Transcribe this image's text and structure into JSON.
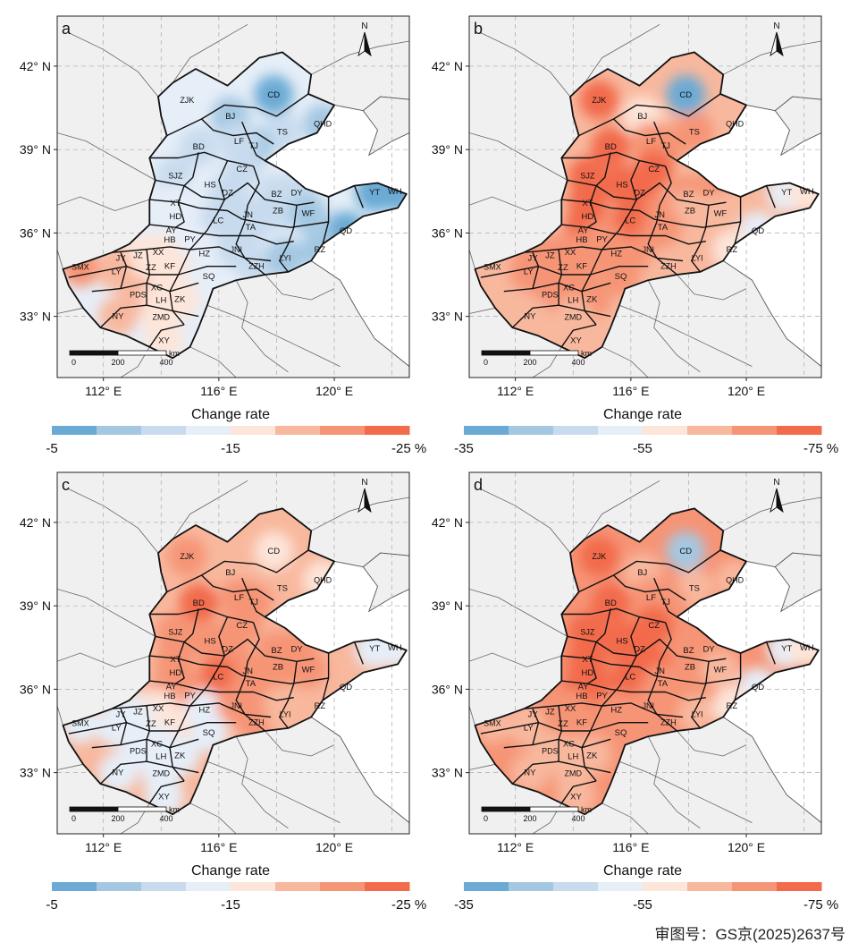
{
  "axes": {
    "lat_ticks": [
      "42° N",
      "39° N",
      "36° N",
      "33° N"
    ],
    "lon_ticks": [
      "112° E",
      "116° E",
      "120° E"
    ]
  },
  "north_label": "N",
  "scale_bar": {
    "ticks": [
      "0",
      "200",
      "400"
    ],
    "unit": "km"
  },
  "legend_title": "Change rate",
  "panels": [
    {
      "id": "a",
      "scale": "p15",
      "colorbar": {
        "left": "-5",
        "mid": "-15",
        "right": "-25 %"
      }
    },
    {
      "id": "b",
      "scale": "p55",
      "colorbar": {
        "left": "-35",
        "mid": "-55",
        "right": "-75 %"
      }
    },
    {
      "id": "c",
      "scale": "p15",
      "colorbar": {
        "left": "-5",
        "mid": "-15",
        "right": "-25 %"
      }
    },
    {
      "id": "d",
      "scale": "p55",
      "colorbar": {
        "left": "-35",
        "mid": "-55",
        "right": "-75 %"
      }
    }
  ],
  "colorbar_colors": [
    "#6aaad4",
    "#a4c8e2",
    "#c8dbee",
    "#e6eef8",
    "#fde5d9",
    "#f8b89e",
    "#f69476",
    "#f26b4b"
  ],
  "cities": [
    {
      "code": "CD",
      "lon": 117.9,
      "lat": 40.97,
      "v": [
        -6,
        -36,
        -16,
        -44
      ]
    },
    {
      "code": "ZJK",
      "lon": 114.9,
      "lat": 40.78,
      "v": [
        -13,
        -70,
        -20,
        -72
      ]
    },
    {
      "code": "BJ",
      "lon": 116.4,
      "lat": 40.2,
      "v": [
        -9,
        -58,
        -19,
        -64
      ]
    },
    {
      "code": "QHD",
      "lon": 119.6,
      "lat": 39.93,
      "v": [
        -9,
        -62,
        -17,
        -60
      ]
    },
    {
      "code": "TS",
      "lon": 118.2,
      "lat": 39.63,
      "v": [
        -10,
        -65,
        -18,
        -64
      ]
    },
    {
      "code": "TJ",
      "lon": 117.2,
      "lat": 39.13,
      "v": [
        -9,
        -66,
        -20,
        -66
      ]
    },
    {
      "code": "LF",
      "lon": 116.7,
      "lat": 39.3,
      "v": [
        -11,
        -67,
        -21,
        -69
      ]
    },
    {
      "code": "BD",
      "lon": 115.3,
      "lat": 39.1,
      "v": [
        -12,
        -70,
        -23,
        -72
      ]
    },
    {
      "code": "CZ",
      "lon": 116.8,
      "lat": 38.3,
      "v": [
        -12,
        -70,
        -22,
        -70
      ]
    },
    {
      "code": "SJZ",
      "lon": 114.5,
      "lat": 38.05,
      "v": [
        -12,
        -72,
        -22,
        -74
      ]
    },
    {
      "code": "HS",
      "lon": 115.7,
      "lat": 37.74,
      "v": [
        -13,
        -71,
        -21,
        -72
      ]
    },
    {
      "code": "BZ",
      "lon": 118.0,
      "lat": 37.4,
      "v": [
        -11,
        -67,
        -22,
        -68
      ]
    },
    {
      "code": "DY",
      "lon": 118.7,
      "lat": 37.45,
      "v": [
        -11,
        -66,
        -22,
        -67
      ]
    },
    {
      "code": "XT",
      "lon": 114.5,
      "lat": 37.07,
      "v": [
        -13,
        -72,
        -22,
        -74
      ]
    },
    {
      "code": "DZ",
      "lon": 116.3,
      "lat": 37.45,
      "v": [
        -12,
        -71,
        -22,
        -71
      ]
    },
    {
      "code": "YT",
      "lon": 121.4,
      "lat": 37.46,
      "v": [
        -6,
        -52,
        -14,
        -52
      ]
    },
    {
      "code": "WH",
      "lon": 122.1,
      "lat": 37.5,
      "v": [
        -6,
        -56,
        -14,
        -56
      ]
    },
    {
      "code": "JN",
      "lon": 117.0,
      "lat": 36.65,
      "v": [
        -12,
        -68,
        -21,
        -70
      ]
    },
    {
      "code": "ZB",
      "lon": 118.05,
      "lat": 36.8,
      "v": [
        -11,
        -64,
        -22,
        -66
      ]
    },
    {
      "code": "HD",
      "lon": 114.5,
      "lat": 36.6,
      "v": [
        -13,
        -74,
        -22,
        -76
      ]
    },
    {
      "code": "LC",
      "lon": 115.98,
      "lat": 36.45,
      "v": [
        -12,
        -70,
        -23,
        -72
      ]
    },
    {
      "code": "WF",
      "lon": 119.1,
      "lat": 36.7,
      "v": [
        -9,
        -60,
        -20,
        -62
      ]
    },
    {
      "code": "QD",
      "lon": 120.4,
      "lat": 36.07,
      "v": [
        -7,
        -52,
        -19,
        -54
      ]
    },
    {
      "code": "AY",
      "lon": 114.35,
      "lat": 36.1,
      "v": [
        -13,
        -70,
        -21,
        -72
      ]
    },
    {
      "code": "TA",
      "lon": 117.1,
      "lat": 36.2,
      "v": [
        -12,
        -66,
        -22,
        -66
      ]
    },
    {
      "code": "HB",
      "lon": 114.3,
      "lat": 35.75,
      "v": [
        -14,
        -70,
        -21,
        -72
      ]
    },
    {
      "code": "PY",
      "lon": 115.0,
      "lat": 35.77,
      "v": [
        -13,
        -68,
        -21,
        -70
      ]
    },
    {
      "code": "JY",
      "lon": 112.6,
      "lat": 35.1,
      "v": [
        -18,
        -66,
        -14,
        -64
      ]
    },
    {
      "code": "JZ",
      "lon": 113.2,
      "lat": 35.2,
      "v": [
        -17,
        -67,
        -14,
        -66
      ]
    },
    {
      "code": "XX",
      "lon": 113.9,
      "lat": 35.3,
      "v": [
        -16,
        -69,
        -15,
        -69
      ]
    },
    {
      "code": "HZ",
      "lon": 115.5,
      "lat": 35.25,
      "v": [
        -13,
        -68,
        -14,
        -68
      ]
    },
    {
      "code": "JNI",
      "lon": 116.6,
      "lat": 35.4,
      "v": [
        -12,
        -67,
        -21,
        -69
      ]
    },
    {
      "code": "ZZH",
      "lon": 117.3,
      "lat": 34.8,
      "v": [
        -11,
        -64,
        -20,
        -66
      ]
    },
    {
      "code": "LYI",
      "lon": 118.3,
      "lat": 35.1,
      "v": [
        -9,
        -60,
        -19,
        -60
      ]
    },
    {
      "code": "RZ",
      "lon": 119.5,
      "lat": 35.4,
      "v": [
        -8,
        -58,
        -19,
        -58
      ]
    },
    {
      "code": "SMX",
      "lon": 111.2,
      "lat": 34.77,
      "v": [
        -20,
        -64,
        -14,
        -62
      ]
    },
    {
      "code": "LY",
      "lon": 112.45,
      "lat": 34.62,
      "v": [
        -19,
        -65,
        -13,
        -64
      ]
    },
    {
      "code": "ZZ",
      "lon": 113.65,
      "lat": 34.75,
      "v": [
        -17,
        -67,
        -14,
        -66
      ]
    },
    {
      "code": "KF",
      "lon": 114.3,
      "lat": 34.8,
      "v": [
        -16,
        -67,
        -16,
        -68
      ]
    },
    {
      "code": "SQ",
      "lon": 115.65,
      "lat": 34.44,
      "v": [
        -13,
        -65,
        -13,
        -66
      ]
    },
    {
      "code": "XC",
      "lon": 113.85,
      "lat": 34.03,
      "v": [
        -17,
        -66,
        -14,
        -65
      ]
    },
    {
      "code": "PDS",
      "lon": 113.2,
      "lat": 33.77,
      "v": [
        -18,
        -65,
        -13,
        -64
      ]
    },
    {
      "code": "LH",
      "lon": 114.0,
      "lat": 33.58,
      "v": [
        -17,
        -65,
        -13,
        -64
      ]
    },
    {
      "code": "ZK",
      "lon": 114.65,
      "lat": 33.62,
      "v": [
        -16,
        -65,
        -13,
        -64
      ]
    },
    {
      "code": "NY",
      "lon": 112.5,
      "lat": 33.0,
      "v": [
        -19,
        -64,
        -13,
        -62
      ]
    },
    {
      "code": "ZMD",
      "lon": 114.0,
      "lat": 32.98,
      "v": [
        -17,
        -64,
        -14,
        -63
      ]
    },
    {
      "code": "XY",
      "lon": 114.1,
      "lat": 32.13,
      "v": [
        -17,
        -63,
        -13,
        -62
      ]
    }
  ],
  "approval_number": "审图号：GS京(2025)2637号"
}
